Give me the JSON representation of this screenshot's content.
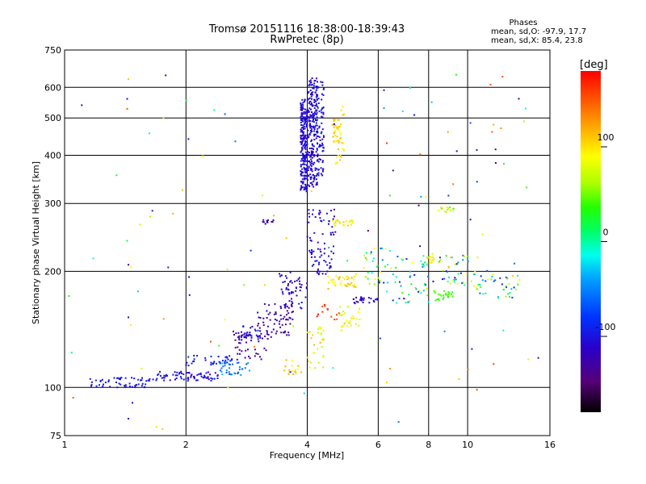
{
  "chart_data": {
    "type": "scatter",
    "title": "Tromsø 20151116 18:38:00-18:39:43",
    "subtitle": "RwPretec (8p)",
    "xlabel": "Frequency [MHz]",
    "ylabel": "Stationary phase Virtual Height [km]",
    "x_scale": "log",
    "y_scale": "log",
    "xlim": [
      1,
      16
    ],
    "ylim": [
      75,
      750
    ],
    "grid": true,
    "x_ticks": [
      1,
      2,
      4,
      6,
      8,
      10,
      16
    ],
    "x_grid": [
      2,
      4,
      6,
      8,
      10
    ],
    "y_ticks": [
      75,
      100,
      200,
      300,
      400,
      500,
      600,
      750
    ],
    "y_grid": [
      100,
      200,
      300,
      400,
      500,
      600
    ],
    "stats": {
      "header": "Phases",
      "line_o": "mean, sd,O:  -97.9, 17.7",
      "line_x": "mean, sd,X:  85.4, 23.8"
    },
    "colorbar": {
      "label": "[deg]",
      "range": [
        -180,
        180
      ],
      "ticks": [
        100,
        0,
        -100
      ]
    },
    "clusters": [
      {
        "x": [
          1.15,
          1.65
        ],
        "y": [
          100,
          106
        ],
        "phase": [
          -115,
          -85
        ],
        "n": 55
      },
      {
        "x": [
          1.65,
          2.4
        ],
        "y": [
          104,
          110
        ],
        "phase": [
          -120,
          -90
        ],
        "n": 70
      },
      {
        "x": [
          2.0,
          2.6
        ],
        "y": [
          114,
          121
        ],
        "phase": [
          -110,
          -80
        ],
        "n": 35
      },
      {
        "x": [
          2.4,
          2.9
        ],
        "y": [
          108,
          116
        ],
        "phase": [
          -80,
          -30
        ],
        "n": 35
      },
      {
        "x": [
          2.6,
          3.2
        ],
        "y": [
          118,
          140
        ],
        "phase": [
          -140,
          -105
        ],
        "n": 50
      },
      {
        "x": [
          3.0,
          3.7
        ],
        "y": [
          135,
          165
        ],
        "phase": [
          -145,
          -110
        ],
        "n": 70
      },
      {
        "x": [
          2.7,
          3.1
        ],
        "y": [
          133,
          145
        ],
        "phase": [
          -120,
          -85
        ],
        "n": 25
      },
      {
        "x": [
          3.4,
          4.0
        ],
        "y": [
          160,
          200
        ],
        "phase": [
          -135,
          -95
        ],
        "n": 60
      },
      {
        "x": [
          3.1,
          3.3
        ],
        "y": [
          265,
          272
        ],
        "phase": [
          -135,
          -110
        ],
        "n": 12
      },
      {
        "x": [
          3.85,
          4.0
        ],
        "y": [
          320,
          560
        ],
        "phase": [
          -118,
          -95
        ],
        "n": 220
      },
      {
        "x": [
          4.0,
          4.25
        ],
        "y": [
          330,
          640
        ],
        "phase": [
          -118,
          -95
        ],
        "n": 220
      },
      {
        "x": [
          4.2,
          4.4
        ],
        "y": [
          350,
          620
        ],
        "phase": [
          -115,
          -90
        ],
        "n": 80
      },
      {
        "x": [
          4.6,
          4.85
        ],
        "y": [
          430,
          500
        ],
        "phase": [
          90,
          120
        ],
        "n": 40
      },
      {
        "x": [
          4.7,
          4.95
        ],
        "y": [
          380,
          560
        ],
        "phase": [
          85,
          115
        ],
        "n": 22
      },
      {
        "x": [
          4.0,
          4.7
        ],
        "y": [
          220,
          290
        ],
        "phase": [
          -130,
          -100
        ],
        "n": 45
      },
      {
        "x": [
          4.6,
          5.2
        ],
        "y": [
          262,
          272
        ],
        "phase": [
          70,
          110
        ],
        "n": 22
      },
      {
        "x": [
          4.0,
          4.4
        ],
        "y": [
          110,
          150
        ],
        "phase": [
          60,
          120
        ],
        "n": 30
      },
      {
        "x": [
          3.5,
          3.9
        ],
        "y": [
          108,
          118
        ],
        "phase": [
          90,
          120
        ],
        "n": 18
      },
      {
        "x": [
          4.2,
          4.8
        ],
        "y": [
          150,
          165
        ],
        "phase": [
          140,
          180
        ],
        "n": 14
      },
      {
        "x": [
          4.1,
          4.6
        ],
        "y": [
          195,
          230
        ],
        "phase": [
          -120,
          -90
        ],
        "n": 35
      },
      {
        "x": [
          4.5,
          5.3
        ],
        "y": [
          180,
          195
        ],
        "phase": [
          80,
          120
        ],
        "n": 40
      },
      {
        "x": [
          4.8,
          5.5
        ],
        "y": [
          140,
          165
        ],
        "phase": [
          60,
          110
        ],
        "n": 30
      },
      {
        "x": [
          5.2,
          6.0
        ],
        "y": [
          165,
          172
        ],
        "phase": [
          -120,
          -95
        ],
        "n": 25
      },
      {
        "x": [
          5.5,
          6.5
        ],
        "y": [
          185,
          230
        ],
        "phase": [
          -110,
          120
        ],
        "n": 35
      },
      {
        "x": [
          6.5,
          8.0
        ],
        "y": [
          165,
          220
        ],
        "phase": [
          -110,
          120
        ],
        "n": 50
      },
      {
        "x": [
          7.8,
          8.6
        ],
        "y": [
          210,
          222
        ],
        "phase": [
          60,
          100
        ],
        "n": 18
      },
      {
        "x": [
          8.2,
          9.2
        ],
        "y": [
          168,
          178
        ],
        "phase": [
          30,
          50
        ],
        "n": 25
      },
      {
        "x": [
          8.5,
          10.5
        ],
        "y": [
          180,
          220
        ],
        "phase": [
          -110,
          120
        ],
        "n": 45
      },
      {
        "x": [
          10.5,
          13.5
        ],
        "y": [
          170,
          200
        ],
        "phase": [
          -110,
          110
        ],
        "n": 40
      },
      {
        "x": [
          8.4,
          9.3
        ],
        "y": [
          285,
          295
        ],
        "phase": [
          20,
          110
        ],
        "n": 16
      },
      {
        "x": [
          1.0,
          16.0
        ],
        "y": [
          78,
          650
        ],
        "phase": [
          -150,
          170
        ],
        "n": 90
      }
    ],
    "points": [
      {
        "x": 1.44,
        "y": 630,
        "phase": 110
      },
      {
        "x": 1.43,
        "y": 560,
        "phase": -110
      },
      {
        "x": 1.43,
        "y": 528,
        "phase": 150
      },
      {
        "x": 1.43,
        "y": 240,
        "phase": 20
      },
      {
        "x": 1.44,
        "y": 208,
        "phase": -140
      },
      {
        "x": 1.46,
        "y": 205,
        "phase": 80
      },
      {
        "x": 1.44,
        "y": 152,
        "phase": -110
      },
      {
        "x": 1.46,
        "y": 145,
        "phase": 100
      },
      {
        "x": 1.44,
        "y": 83,
        "phase": -110
      },
      {
        "x": 1.69,
        "y": 79,
        "phase": 100
      },
      {
        "x": 1.75,
        "y": 78,
        "phase": 110
      },
      {
        "x": 6.2,
        "y": 590,
        "phase": -100
      },
      {
        "x": 6.3,
        "y": 430,
        "phase": 160
      },
      {
        "x": 6.2,
        "y": 530,
        "phase": -40
      },
      {
        "x": 6.9,
        "y": 520,
        "phase": -20
      },
      {
        "x": 9.4,
        "y": 410,
        "phase": -130
      },
      {
        "x": 11.4,
        "y": 610,
        "phase": 150
      },
      {
        "x": 11.5,
        "y": 460,
        "phase": 150
      },
      {
        "x": 11.6,
        "y": 480,
        "phase": 120
      },
      {
        "x": 12.2,
        "y": 640,
        "phase": 150
      },
      {
        "x": 12.1,
        "y": 470,
        "phase": 130
      },
      {
        "x": 12.3,
        "y": 380,
        "phase": 30
      },
      {
        "x": 13.8,
        "y": 490,
        "phase": 60
      },
      {
        "x": 14.0,
        "y": 330,
        "phase": 40
      },
      {
        "x": 11.6,
        "y": 115,
        "phase": 160
      },
      {
        "x": 6.3,
        "y": 103,
        "phase": 100
      },
      {
        "x": 2.5,
        "y": 150,
        "phase": 90
      },
      {
        "x": 1.05,
        "y": 94,
        "phase": 150
      }
    ]
  }
}
